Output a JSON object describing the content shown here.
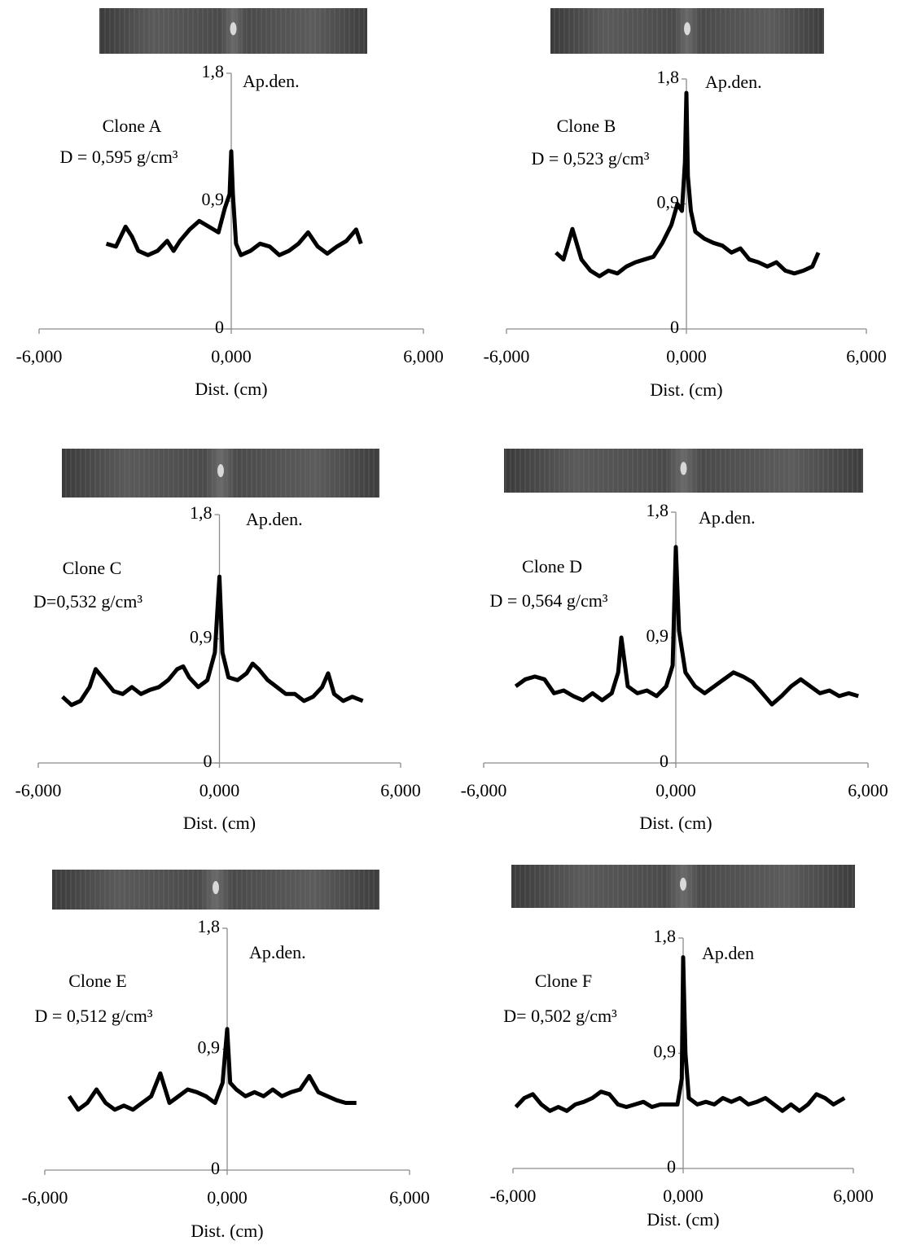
{
  "chart_data": [
    {
      "type": "line",
      "title": "Clone A",
      "annotation": "D = 0,595 g/cm³",
      "y_label": "Ap.den.",
      "x_label": "Dist. (cm)",
      "x": [
        -3.9,
        -3.6,
        -3.3,
        -3.1,
        -2.9,
        -2.6,
        -2.3,
        -2.0,
        -1.8,
        -1.6,
        -1.3,
        -1.0,
        -0.7,
        -0.4,
        -0.2,
        -0.05,
        0,
        0.05,
        0.15,
        0.3,
        0.6,
        0.9,
        1.2,
        1.5,
        1.8,
        2.1,
        2.4,
        2.7,
        3.0,
        3.3,
        3.6,
        3.9,
        4.05
      ],
      "values": [
        0.6,
        0.58,
        0.72,
        0.65,
        0.55,
        0.52,
        0.55,
        0.62,
        0.55,
        0.62,
        0.7,
        0.76,
        0.72,
        0.68,
        0.85,
        0.95,
        1.25,
        0.95,
        0.6,
        0.52,
        0.55,
        0.6,
        0.58,
        0.52,
        0.55,
        0.6,
        0.68,
        0.58,
        0.53,
        0.58,
        0.62,
        0.7,
        0.6
      ],
      "color": "#000000",
      "xlim": [
        -6,
        6
      ],
      "ylim": [
        0,
        1.8
      ],
      "xticks": [
        {
          "value": -6,
          "label": "-6,000"
        },
        {
          "value": 0,
          "label": "0,000"
        },
        {
          "value": 6,
          "label": "6,000"
        }
      ],
      "yticks": [
        0,
        {
          "value": 0.9,
          "label": "0,9"
        },
        {
          "value": 1.8,
          "label": "1,8"
        }
      ]
    },
    {
      "type": "line",
      "title": "Clone B",
      "annotation": "D = 0,523 g/cm³",
      "y_label": "Ap.den.",
      "x_label": "Dist. (cm)",
      "x": [
        -4.35,
        -4.1,
        -3.8,
        -3.5,
        -3.2,
        -2.9,
        -2.6,
        -2.3,
        -2.0,
        -1.7,
        -1.4,
        -1.1,
        -0.8,
        -0.5,
        -0.3,
        -0.15,
        -0.05,
        0,
        0.05,
        0.15,
        0.3,
        0.6,
        0.9,
        1.2,
        1.5,
        1.8,
        2.1,
        2.4,
        2.7,
        3.0,
        3.3,
        3.6,
        3.9,
        4.2,
        4.4
      ],
      "values": [
        0.55,
        0.5,
        0.72,
        0.5,
        0.42,
        0.38,
        0.42,
        0.4,
        0.45,
        0.48,
        0.5,
        0.52,
        0.62,
        0.75,
        0.9,
        0.85,
        1.2,
        1.7,
        1.1,
        0.85,
        0.7,
        0.65,
        0.62,
        0.6,
        0.55,
        0.58,
        0.5,
        0.48,
        0.45,
        0.48,
        0.42,
        0.4,
        0.42,
        0.45,
        0.55
      ],
      "color": "#000000",
      "xlim": [
        -6,
        6
      ],
      "ylim": [
        0,
        1.8
      ],
      "xticks": [
        {
          "value": -6,
          "label": "-6,000"
        },
        {
          "value": 0,
          "label": "0,000"
        },
        {
          "value": 6,
          "label": "6,000"
        }
      ],
      "yticks": [
        0,
        {
          "value": 0.9,
          "label": "0,9"
        },
        {
          "value": 1.8,
          "label": "1,8"
        }
      ]
    },
    {
      "type": "line",
      "title": "Clone C",
      "annotation": "D=0,532 g/cm³",
      "y_label": "Ap.den.",
      "x_label": "Dist. (cm)",
      "x": [
        -5.2,
        -4.9,
        -4.6,
        -4.3,
        -4.1,
        -3.8,
        -3.5,
        -3.2,
        -2.9,
        -2.6,
        -2.3,
        -2.0,
        -1.7,
        -1.4,
        -1.2,
        -1.0,
        -0.7,
        -0.4,
        -0.15,
        0,
        0.1,
        0.3,
        0.6,
        0.9,
        1.1,
        1.3,
        1.6,
        1.9,
        2.2,
        2.5,
        2.8,
        3.1,
        3.4,
        3.6,
        3.8,
        4.1,
        4.4,
        4.75
      ],
      "values": [
        0.48,
        0.42,
        0.45,
        0.55,
        0.68,
        0.6,
        0.52,
        0.5,
        0.55,
        0.5,
        0.53,
        0.55,
        0.6,
        0.68,
        0.7,
        0.62,
        0.55,
        0.6,
        0.8,
        1.35,
        0.8,
        0.62,
        0.6,
        0.65,
        0.72,
        0.68,
        0.6,
        0.55,
        0.5,
        0.5,
        0.45,
        0.48,
        0.55,
        0.65,
        0.5,
        0.45,
        0.48,
        0.45
      ],
      "color": "#000000",
      "xlim": [
        -6,
        6
      ],
      "ylim": [
        0,
        1.8
      ],
      "xticks": [
        {
          "value": -6,
          "label": "-6,000"
        },
        {
          "value": 0,
          "label": "0,000"
        },
        {
          "value": 6,
          "label": "6,000"
        }
      ],
      "yticks": [
        0,
        {
          "value": 0.9,
          "label": "0,9"
        },
        {
          "value": 1.8,
          "label": "1,8"
        }
      ]
    },
    {
      "type": "line",
      "title": "Clone D",
      "annotation": "D = 0,564 g/cm³",
      "y_label": "Ap.den.",
      "x_label": "Dist. (cm)",
      "x": [
        -5.0,
        -4.7,
        -4.4,
        -4.1,
        -3.8,
        -3.5,
        -3.2,
        -2.9,
        -2.6,
        -2.3,
        -2.0,
        -1.8,
        -1.7,
        -1.5,
        -1.2,
        -0.9,
        -0.6,
        -0.3,
        -0.1,
        0,
        0.1,
        0.3,
        0.6,
        0.9,
        1.2,
        1.5,
        1.8,
        2.1,
        2.4,
        2.7,
        3.0,
        3.3,
        3.6,
        3.9,
        4.2,
        4.5,
        4.8,
        5.1,
        5.4,
        5.7
      ],
      "values": [
        0.55,
        0.6,
        0.62,
        0.6,
        0.5,
        0.52,
        0.48,
        0.45,
        0.5,
        0.45,
        0.5,
        0.65,
        0.9,
        0.55,
        0.5,
        0.52,
        0.48,
        0.55,
        0.7,
        1.55,
        0.95,
        0.65,
        0.55,
        0.5,
        0.55,
        0.6,
        0.65,
        0.62,
        0.58,
        0.5,
        0.42,
        0.48,
        0.55,
        0.6,
        0.55,
        0.5,
        0.52,
        0.48,
        0.5,
        0.48
      ],
      "color": "#000000",
      "xlim": [
        -6,
        6
      ],
      "ylim": [
        0,
        1.8
      ],
      "xticks": [
        {
          "value": -6,
          "label": "-6,000"
        },
        {
          "value": 0,
          "label": "0,000"
        },
        {
          "value": 6,
          "label": "6,000"
        }
      ],
      "yticks": [
        0,
        {
          "value": 0.9,
          "label": "0,9"
        },
        {
          "value": 1.8,
          "label": "1,8"
        }
      ]
    },
    {
      "type": "line",
      "title": "Clone E",
      "annotation": "D = 0,512 g/cm³",
      "y_label": "Ap.den.",
      "x_label": "Dist. (cm)",
      "x": [
        -5.2,
        -4.9,
        -4.6,
        -4.3,
        -4.0,
        -3.7,
        -3.4,
        -3.1,
        -2.8,
        -2.5,
        -2.2,
        -1.9,
        -1.6,
        -1.3,
        -1.0,
        -0.7,
        -0.4,
        -0.15,
        0,
        0.1,
        0.3,
        0.6,
        0.9,
        1.2,
        1.5,
        1.8,
        2.1,
        2.4,
        2.7,
        3.0,
        3.3,
        3.6,
        3.9,
        4.25
      ],
      "values": [
        0.55,
        0.45,
        0.5,
        0.6,
        0.5,
        0.45,
        0.48,
        0.45,
        0.5,
        0.55,
        0.72,
        0.5,
        0.55,
        0.6,
        0.58,
        0.55,
        0.5,
        0.65,
        1.05,
        0.65,
        0.6,
        0.55,
        0.58,
        0.55,
        0.6,
        0.55,
        0.58,
        0.6,
        0.7,
        0.58,
        0.55,
        0.52,
        0.5,
        0.5
      ],
      "color": "#000000",
      "xlim": [
        -6,
        6
      ],
      "ylim": [
        0,
        1.8
      ],
      "xticks": [
        {
          "value": -6,
          "label": "-6,000"
        },
        {
          "value": 0,
          "label": "0,000"
        },
        {
          "value": 6,
          "label": "6,000"
        }
      ],
      "yticks": [
        0,
        {
          "value": 0.9,
          "label": "0,9"
        },
        {
          "value": 1.8,
          "label": "1,8"
        }
      ]
    },
    {
      "type": "line",
      "title": "Clone F",
      "annotation": "D= 0,502 g/cm³",
      "y_label": "Ap.den",
      "x_label": "Dist. (cm)",
      "x": [
        -5.9,
        -5.6,
        -5.3,
        -5.0,
        -4.7,
        -4.4,
        -4.1,
        -3.8,
        -3.5,
        -3.2,
        -2.9,
        -2.6,
        -2.3,
        -2.0,
        -1.7,
        -1.4,
        -1.1,
        -0.8,
        -0.5,
        -0.2,
        -0.05,
        0,
        0.08,
        0.2,
        0.5,
        0.8,
        1.1,
        1.4,
        1.7,
        2.0,
        2.3,
        2.6,
        2.9,
        3.2,
        3.5,
        3.8,
        4.1,
        4.4,
        4.7,
        5.0,
        5.3,
        5.69
      ],
      "values": [
        0.48,
        0.55,
        0.58,
        0.5,
        0.45,
        0.48,
        0.45,
        0.5,
        0.52,
        0.55,
        0.6,
        0.58,
        0.5,
        0.48,
        0.5,
        0.52,
        0.48,
        0.5,
        0.5,
        0.5,
        0.7,
        1.65,
        0.9,
        0.55,
        0.5,
        0.52,
        0.5,
        0.55,
        0.52,
        0.55,
        0.5,
        0.52,
        0.55,
        0.5,
        0.45,
        0.5,
        0.45,
        0.5,
        0.58,
        0.55,
        0.5,
        0.55
      ],
      "color": "#000000",
      "xlim": [
        -6,
        6
      ],
      "ylim": [
        0,
        1.8
      ],
      "xticks": [
        {
          "value": -6,
          "label": "-6,000"
        },
        {
          "value": 0,
          "label": "0,000"
        },
        {
          "value": 6,
          "label": "6,000"
        }
      ],
      "yticks": [
        0,
        {
          "value": 0.9,
          "label": "0,9"
        },
        {
          "value": 1.8,
          "label": "1,8"
        }
      ]
    }
  ]
}
